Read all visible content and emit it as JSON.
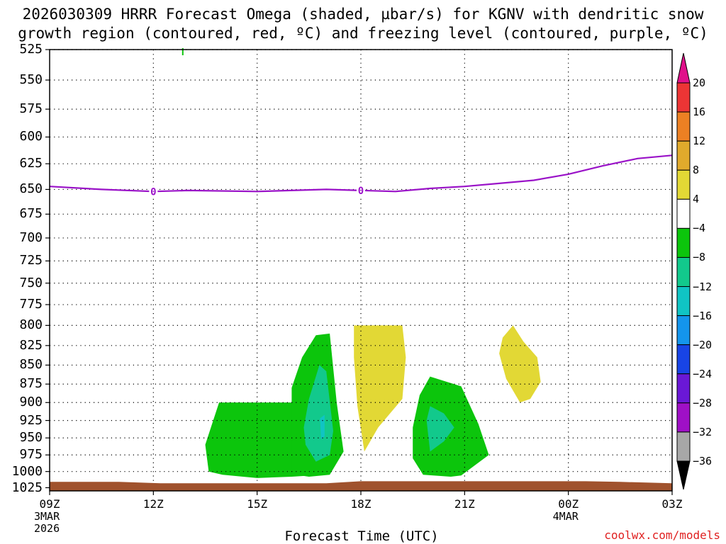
{
  "chart_data": {
    "type": "heatmap",
    "title_lines": [
      "2026030309 HRRR Forecast Omega (shaded, µbar/s) for KGNV with dendritic snow",
      "growth region (contoured, red, ºC) and freezing level (contoured, purple, ºC)"
    ],
    "xlabel": "Forecast Time (UTC)",
    "credit": "coolwx.com/models",
    "x_hours": [
      0,
      3,
      6,
      9,
      12,
      15,
      18
    ],
    "x_tick_labels": [
      "09Z",
      "12Z",
      "15Z",
      "18Z",
      "21Z",
      "00Z",
      "03Z"
    ],
    "x_date_labels": [
      {
        "hour": 0,
        "lines": [
          "3MAR",
          "2026"
        ]
      },
      {
        "hour": 15,
        "lines": [
          "4MAR"
        ]
      }
    ],
    "y_levels_hpa": [
      525,
      550,
      575,
      600,
      625,
      650,
      675,
      700,
      725,
      750,
      775,
      800,
      825,
      850,
      875,
      900,
      925,
      950,
      975,
      1000,
      1025
    ],
    "y_range_hpa": [
      525,
      1030
    ],
    "y_scale": "log-pressure (inverted)",
    "freezing_level": {
      "label": "0",
      "color": "#9a12c8",
      "label_hours": [
        3,
        9
      ],
      "points": [
        [
          0,
          647
        ],
        [
          1.5,
          650
        ],
        [
          3,
          652
        ],
        [
          4,
          651
        ],
        [
          6,
          652
        ],
        [
          8,
          650
        ],
        [
          10,
          652
        ],
        [
          11,
          649
        ],
        [
          12,
          647
        ],
        [
          13,
          644
        ],
        [
          14,
          641
        ],
        [
          15,
          635
        ],
        [
          16,
          627
        ],
        [
          17,
          620
        ],
        [
          18,
          617
        ]
      ]
    },
    "colorbar": {
      "tick_labels": [
        "20",
        "16",
        "12",
        "8",
        "4",
        "−4",
        "−8",
        "−12",
        "−16",
        "−20",
        "−24",
        "−28",
        "−32",
        "−36"
      ],
      "bins": [
        {
          "color": "#ec3535"
        },
        {
          "color": "#ec8023"
        },
        {
          "color": "#e0aa2c"
        },
        {
          "color": "#e2d835"
        },
        {
          "color": "#ffffff"
        },
        {
          "color": "#0cc50c"
        },
        {
          "color": "#12c98c"
        },
        {
          "color": "#10c4c4"
        },
        {
          "color": "#1495ec"
        },
        {
          "color": "#1844e6"
        },
        {
          "color": "#6a18d6"
        },
        {
          "color": "#9f10c6"
        },
        {
          "color": "#a7a7a7"
        }
      ],
      "top_arrow_color": "#e0108a",
      "bottom_arrow_color": "#000000"
    },
    "omega_regions": [
      {
        "name": "green-region-1",
        "value_range": "-8 to -4",
        "color": "#0cc50c",
        "points": [
          [
            4.6,
            1000
          ],
          [
            4.5,
            960
          ],
          [
            4.9,
            900
          ],
          [
            6,
            900
          ],
          [
            7,
            900
          ],
          [
            7.4,
            900
          ],
          [
            7.9,
            1005
          ],
          [
            7,
            1008
          ],
          [
            6,
            1010
          ],
          [
            5,
            1005
          ]
        ]
      },
      {
        "name": "green-region-2",
        "value_range": "-8 to -4",
        "color": "#0cc50c",
        "points": [
          [
            7.0,
            880
          ],
          [
            7.3,
            840
          ],
          [
            7.7,
            812
          ],
          [
            8.1,
            810
          ],
          [
            8.3,
            900
          ],
          [
            8.5,
            970
          ],
          [
            8.1,
            1005
          ],
          [
            7.5,
            1008
          ],
          [
            7.0,
            1004
          ]
        ]
      },
      {
        "name": "teal-region-1",
        "value_range": "-12 to -8",
        "color": "#12c98c",
        "points": [
          [
            7.35,
            935
          ],
          [
            7.5,
            895
          ],
          [
            7.8,
            850
          ],
          [
            8.0,
            858
          ],
          [
            8.2,
            940
          ],
          [
            8.1,
            975
          ],
          [
            7.7,
            985
          ],
          [
            7.4,
            960
          ]
        ]
      },
      {
        "name": "cyan-region-1",
        "value_range": "-16 to -12",
        "color": "#10c4c4",
        "points": [
          [
            7.82,
            922
          ],
          [
            7.95,
            917
          ],
          [
            7.95,
            948
          ],
          [
            7.85,
            952
          ]
        ]
      },
      {
        "name": "yellow-region-1",
        "value_range": "4 to 8",
        "color": "#e2d835",
        "points": [
          [
            8.8,
            800
          ],
          [
            10.2,
            800
          ],
          [
            10.3,
            840
          ],
          [
            10.2,
            895
          ],
          [
            9.5,
            935
          ],
          [
            9.1,
            970
          ],
          [
            8.9,
            905
          ],
          [
            8.8,
            840
          ]
        ]
      },
      {
        "name": "green-region-3",
        "value_range": "-8 to -4",
        "color": "#0cc50c",
        "points": [
          [
            10.5,
            935
          ],
          [
            10.7,
            890
          ],
          [
            11.0,
            865
          ],
          [
            11.9,
            878
          ],
          [
            12.4,
            930
          ],
          [
            12.7,
            975
          ],
          [
            11.9,
            1006
          ],
          [
            11.6,
            1008
          ],
          [
            10.8,
            1005
          ],
          [
            10.5,
            980
          ]
        ]
      },
      {
        "name": "teal-region-2",
        "value_range": "-12 to -8",
        "color": "#12c98c",
        "points": [
          [
            10.9,
            925
          ],
          [
            11.0,
            905
          ],
          [
            11.4,
            915
          ],
          [
            11.7,
            935
          ],
          [
            11.4,
            955
          ],
          [
            11.0,
            970
          ]
        ]
      },
      {
        "name": "yellow-region-2",
        "value_range": "4 to 8",
        "color": "#e2d835",
        "points": [
          [
            13.0,
            835
          ],
          [
            13.1,
            815
          ],
          [
            13.4,
            800
          ],
          [
            13.7,
            820
          ],
          [
            14.1,
            840
          ],
          [
            14.2,
            872
          ],
          [
            13.9,
            895
          ],
          [
            13.6,
            900
          ],
          [
            13.2,
            868
          ]
        ]
      }
    ],
    "terrain_color": "#a0522d",
    "dendritic_region": "none visible",
    "top_marker_color": "#0cc50c"
  }
}
